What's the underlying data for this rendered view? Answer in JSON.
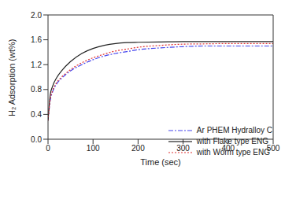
{
  "chart_data": {
    "type": "line",
    "x_label": "Time (sec)",
    "y_label": "H₂ Adsorption (wt%)",
    "x": [
      0,
      5,
      10,
      20,
      30,
      50,
      75,
      100,
      125,
      150,
      175,
      200,
      250,
      300,
      350,
      400,
      450,
      500
    ],
    "series": [
      {
        "name": "Ar PHEM Hydralloy C",
        "color": "#4444ee",
        "line_style": "dashdot",
        "values": [
          0.3,
          0.63,
          0.76,
          0.9,
          0.98,
          1.1,
          1.2,
          1.28,
          1.34,
          1.38,
          1.41,
          1.44,
          1.47,
          1.49,
          1.5,
          1.5,
          1.5,
          1.5
        ]
      },
      {
        "name": "with Flake type ENG",
        "color": "#222222",
        "line_style": "solid",
        "values": [
          0.3,
          0.72,
          0.85,
          1.0,
          1.1,
          1.25,
          1.38,
          1.46,
          1.51,
          1.54,
          1.555,
          1.56,
          1.565,
          1.57,
          1.57,
          1.57,
          1.57,
          1.57
        ]
      },
      {
        "name": "with Worm type ENG",
        "color": "#e03030",
        "line_style": "dotted",
        "values": [
          0.3,
          0.65,
          0.78,
          0.92,
          1.0,
          1.12,
          1.23,
          1.31,
          1.37,
          1.42,
          1.45,
          1.48,
          1.51,
          1.53,
          1.535,
          1.54,
          1.54,
          1.54
        ]
      }
    ],
    "xlim": [
      0,
      500
    ],
    "xticks": [
      0,
      100,
      200,
      300,
      400,
      500
    ],
    "ylim": [
      0,
      2
    ],
    "yticks": [
      {
        "value": 0,
        "label": "0.0"
      },
      0.4,
      0.8,
      1.2,
      1.6,
      {
        "value": 2,
        "label": "2.0"
      }
    ],
    "legend": "lower right"
  }
}
